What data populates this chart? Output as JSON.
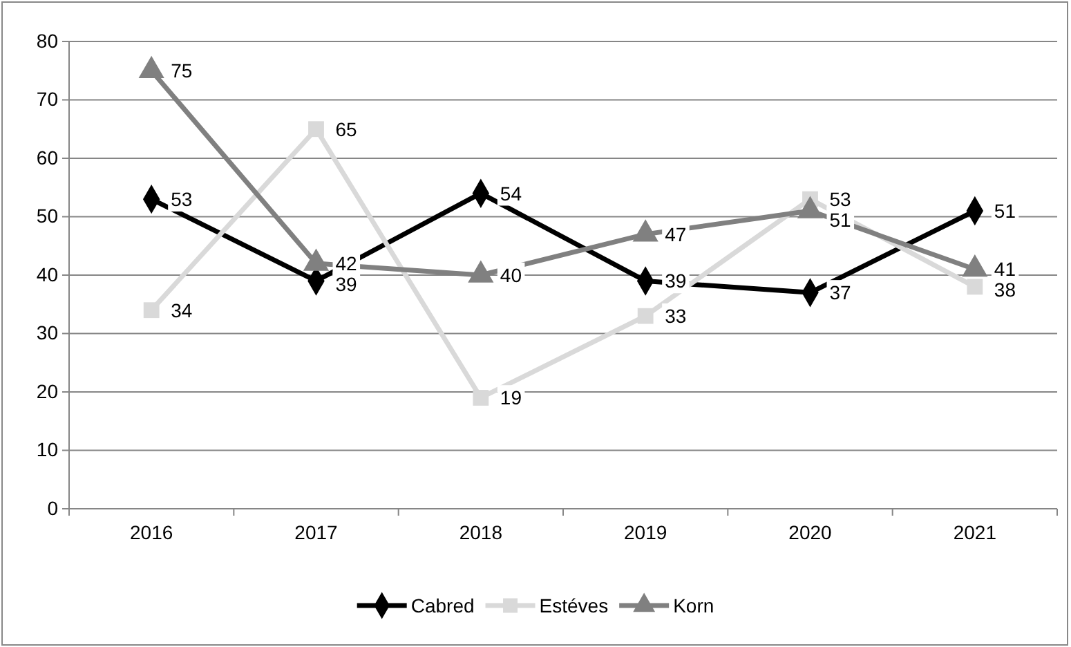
{
  "chart_data": {
    "type": "line",
    "categories": [
      "2016",
      "2017",
      "2018",
      "2019",
      "2020",
      "2021"
    ],
    "series": [
      {
        "name": "Cabred",
        "color": "#000000",
        "marker": "diamond",
        "values": [
          53,
          39,
          54,
          39,
          37,
          51
        ]
      },
      {
        "name": "Estéves",
        "color": "#d9d9d9",
        "marker": "square",
        "values": [
          34,
          65,
          19,
          33,
          53,
          38
        ]
      },
      {
        "name": "Korn",
        "color": "#808080",
        "marker": "triangle",
        "values": [
          75,
          42,
          40,
          47,
          51,
          41
        ]
      }
    ],
    "ylim": [
      0,
      80
    ],
    "yticks": [
      0,
      10,
      20,
      30,
      40,
      50,
      60,
      70,
      80
    ],
    "grid": "y",
    "legend": "bottom",
    "data_labels": true
  }
}
